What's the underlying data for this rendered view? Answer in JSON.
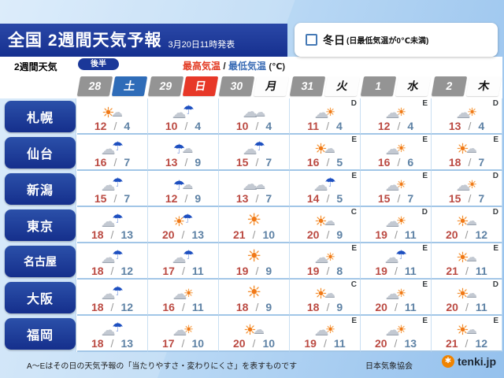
{
  "header": {
    "title": "全国 2週間天気予報",
    "published": "3月20日11時発表"
  },
  "legend": {
    "label": "冬日",
    "note": "(日最低気温が0℃未満)"
  },
  "subheader": {
    "tab_group_label": "2週間天気",
    "active_tab": "後半",
    "high_label": "最高気温",
    "separator": "/",
    "low_label": "最低気温",
    "unit": "(℃)"
  },
  "days": [
    {
      "date": "28",
      "dow": "土",
      "dow_type": "sat"
    },
    {
      "date": "29",
      "dow": "日",
      "dow_type": "sun"
    },
    {
      "date": "30",
      "dow": "月",
      "dow_type": "weekday"
    },
    {
      "date": "31",
      "dow": "火",
      "dow_type": "weekday"
    },
    {
      "date": "1",
      "dow": "水",
      "dow_type": "weekday"
    },
    {
      "date": "2",
      "dow": "木",
      "dow_type": "weekday"
    }
  ],
  "cities": [
    {
      "name": "札幌",
      "cells": [
        {
          "icon": "sun-cloud",
          "high": "12",
          "low": "4",
          "grade": ""
        },
        {
          "icon": "cloud-umbrella",
          "high": "10",
          "low": "4",
          "grade": ""
        },
        {
          "icon": "cloud",
          "high": "10",
          "low": "4",
          "grade": ""
        },
        {
          "icon": "cloud-sun",
          "high": "11",
          "low": "4",
          "grade": "D"
        },
        {
          "icon": "cloud-sun",
          "high": "12",
          "low": "4",
          "grade": "E"
        },
        {
          "icon": "cloud-sun",
          "high": "13",
          "low": "4",
          "grade": "D"
        }
      ]
    },
    {
      "name": "仙台",
      "cells": [
        {
          "icon": "cloud-umbrella",
          "high": "16",
          "low": "7",
          "grade": ""
        },
        {
          "icon": "umbrella-cloud",
          "high": "13",
          "low": "9",
          "grade": ""
        },
        {
          "icon": "cloud-umbrella",
          "high": "15",
          "low": "7",
          "grade": ""
        },
        {
          "icon": "sun-cloud",
          "high": "16",
          "low": "5",
          "grade": "E"
        },
        {
          "icon": "cloud-sun",
          "high": "16",
          "low": "6",
          "grade": "E"
        },
        {
          "icon": "sun-cloud",
          "high": "18",
          "low": "7",
          "grade": "E"
        }
      ]
    },
    {
      "name": "新潟",
      "cells": [
        {
          "icon": "cloud-umbrella",
          "high": "15",
          "low": "7",
          "grade": ""
        },
        {
          "icon": "umbrella-cloud",
          "high": "12",
          "low": "9",
          "grade": ""
        },
        {
          "icon": "cloud",
          "high": "13",
          "low": "7",
          "grade": ""
        },
        {
          "icon": "cloud-umbrella",
          "high": "14",
          "low": "5",
          "grade": "E"
        },
        {
          "icon": "cloud-sun",
          "high": "15",
          "low": "7",
          "grade": "E"
        },
        {
          "icon": "cloud-sun",
          "high": "15",
          "low": "7",
          "grade": "D"
        }
      ]
    },
    {
      "name": "東京",
      "cells": [
        {
          "icon": "cloud-umbrella",
          "high": "18",
          "low": "13",
          "grade": ""
        },
        {
          "icon": "sun-umbrella",
          "high": "20",
          "low": "13",
          "grade": ""
        },
        {
          "icon": "sun",
          "high": "21",
          "low": "10",
          "grade": ""
        },
        {
          "icon": "sun-cloud",
          "high": "20",
          "low": "9",
          "grade": "C"
        },
        {
          "icon": "cloud-sun",
          "high": "19",
          "low": "11",
          "grade": "D"
        },
        {
          "icon": "sun-cloud",
          "high": "20",
          "low": "12",
          "grade": "D"
        }
      ]
    },
    {
      "name": "名古屋",
      "cells": [
        {
          "icon": "cloud-umbrella",
          "high": "18",
          "low": "12",
          "grade": ""
        },
        {
          "icon": "cloud-umbrella",
          "high": "17",
          "low": "11",
          "grade": ""
        },
        {
          "icon": "sun",
          "high": "19",
          "low": "9",
          "grade": ""
        },
        {
          "icon": "cloud-sun",
          "high": "19",
          "low": "8",
          "grade": "E"
        },
        {
          "icon": "cloud-umbrella",
          "high": "19",
          "low": "11",
          "grade": "E"
        },
        {
          "icon": "sun-cloud",
          "high": "21",
          "low": "11",
          "grade": "E"
        }
      ]
    },
    {
      "name": "大阪",
      "cells": [
        {
          "icon": "cloud-umbrella",
          "high": "18",
          "low": "12",
          "grade": ""
        },
        {
          "icon": "cloud-sun",
          "high": "16",
          "low": "11",
          "grade": ""
        },
        {
          "icon": "sun",
          "high": "18",
          "low": "9",
          "grade": ""
        },
        {
          "icon": "sun-cloud",
          "high": "18",
          "low": "9",
          "grade": "C"
        },
        {
          "icon": "cloud-sun",
          "high": "20",
          "low": "11",
          "grade": "E"
        },
        {
          "icon": "sun-cloud",
          "high": "20",
          "low": "11",
          "grade": "D"
        }
      ]
    },
    {
      "name": "福岡",
      "cells": [
        {
          "icon": "cloud-umbrella",
          "high": "18",
          "low": "13",
          "grade": ""
        },
        {
          "icon": "cloud-sun",
          "high": "17",
          "low": "10",
          "grade": ""
        },
        {
          "icon": "sun-cloud",
          "high": "20",
          "low": "10",
          "grade": ""
        },
        {
          "icon": "cloud-sun",
          "high": "19",
          "low": "11",
          "grade": "E"
        },
        {
          "icon": "cloud-sun",
          "high": "20",
          "low": "13",
          "grade": "E"
        },
        {
          "icon": "sun-cloud",
          "high": "21",
          "low": "12",
          "grade": "E"
        }
      ]
    }
  ],
  "footer": {
    "note": "A〜Eはその日の天気予報の「当たりやすさ・変わりにくさ」を表すものです",
    "credit": "日本気象協会",
    "brand": "tenki.jp"
  },
  "colors": {
    "accent_blue": "#1b3899",
    "sat_blue": "#2f6cb8",
    "sun_red": "#e73828",
    "high_temp": "#bb4a42",
    "low_temp": "#5e82a5"
  }
}
